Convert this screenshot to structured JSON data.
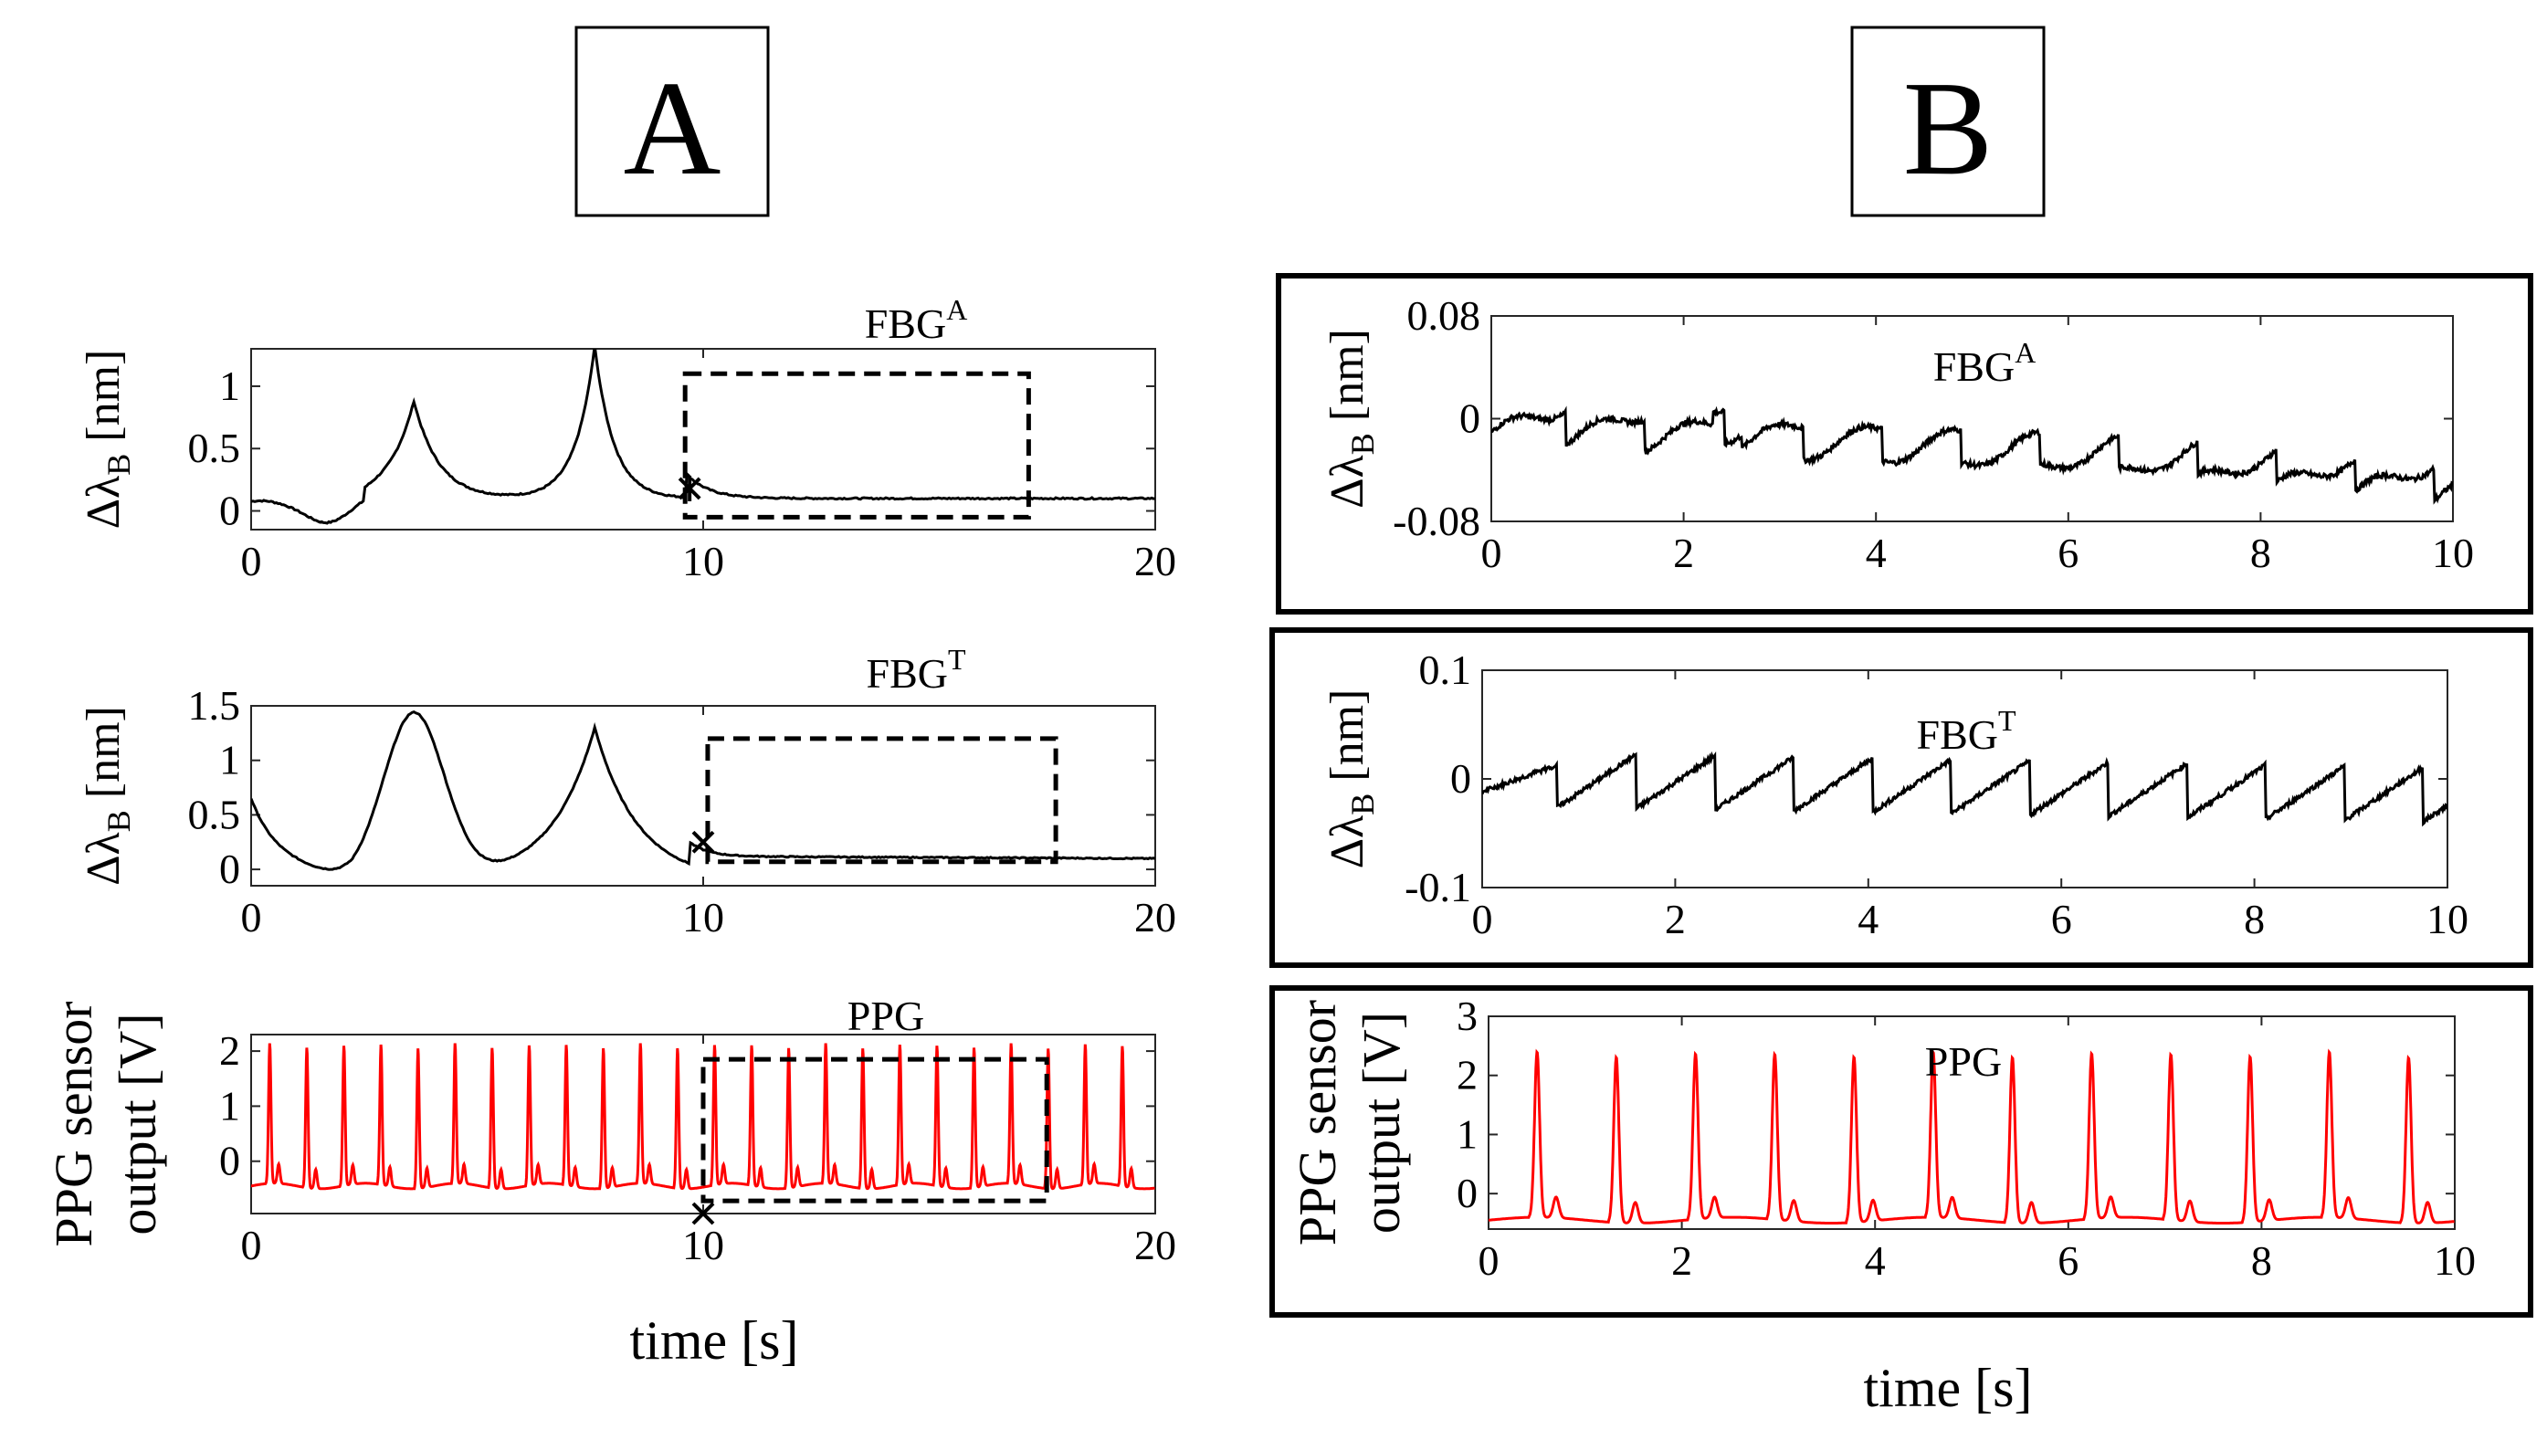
{
  "colors": {
    "black": "#000000",
    "red": "#ff0000"
  },
  "panels": {
    "A": "A",
    "B": "B"
  },
  "xlabel": "time [s]",
  "chart_data": [
    {
      "type": "line",
      "panel": "A",
      "title": "FBG",
      "title_sup": "A",
      "ylabel": "ΔλB [nm]",
      "xlabel": "",
      "xlim": [
        0,
        20
      ],
      "ylim": [
        -0.15,
        1.3
      ],
      "xticks": [
        0,
        10,
        20
      ],
      "yticks": [
        0,
        0.5,
        1
      ],
      "ytick_labels": [
        "0",
        "0.5",
        "1"
      ],
      "color": "#000000",
      "kind": "fbgA_long",
      "window_box": [
        9.6,
        17.2,
        -0.05,
        1.1
      ],
      "marker": [
        9.7,
        0.18
      ],
      "marker_symbol": "*"
    },
    {
      "type": "line",
      "panel": "A",
      "title": "FBG",
      "title_sup": "T",
      "ylabel": "ΔλB [nm]",
      "xlabel": "",
      "xlim": [
        0,
        20
      ],
      "ylim": [
        -0.15,
        1.5
      ],
      "xticks": [
        0,
        10,
        20
      ],
      "yticks": [
        0,
        0.5,
        1,
        1.5
      ],
      "ytick_labels": [
        "0",
        "0.5",
        "1",
        "1.5"
      ],
      "color": "#000000",
      "kind": "fbgT_long",
      "window_box": [
        10.1,
        17.8,
        0.07,
        1.2
      ],
      "marker": [
        10.0,
        0.25
      ],
      "marker_symbol": "x"
    },
    {
      "type": "line",
      "panel": "A",
      "title": "PPG",
      "title_sup": "",
      "ylabel": "PPG sensor|output [V]",
      "xlabel": "time [s]",
      "xlim": [
        0,
        20
      ],
      "ylim": [
        -0.95,
        2.3
      ],
      "xticks": [
        0,
        10,
        20
      ],
      "yticks": [
        0,
        1,
        2
      ],
      "ytick_labels": [
        "0",
        "1",
        "2"
      ],
      "color": "#ff0000",
      "kind": "ppg_long",
      "window_box": [
        10.0,
        17.6,
        -0.72,
        1.85
      ],
      "marker": [
        10.0,
        -0.95
      ],
      "marker_symbol": "x"
    },
    {
      "type": "line",
      "panel": "B",
      "title": "FBG",
      "title_sup": "A",
      "ylabel": "ΔλB [nm]",
      "xlabel": "",
      "xlim": [
        0,
        10
      ],
      "ylim": [
        -0.08,
        0.08
      ],
      "xticks": [
        0,
        2,
        4,
        6,
        8,
        10
      ],
      "yticks": [
        -0.08,
        0,
        0.08
      ],
      "ytick_labels": [
        "-0.08",
        "0",
        "0.08"
      ],
      "color": "#000000",
      "kind": "fbgA_short"
    },
    {
      "type": "line",
      "panel": "B",
      "title": "FBG",
      "title_sup": "T",
      "ylabel": "ΔλB [nm]",
      "xlabel": "",
      "xlim": [
        0,
        10
      ],
      "ylim": [
        -0.1,
        0.1
      ],
      "xticks": [
        0,
        2,
        4,
        6,
        8,
        10
      ],
      "yticks": [
        -0.1,
        0,
        0.1
      ],
      "ytick_labels": [
        "-0.1",
        "0",
        "0.1"
      ],
      "color": "#000000",
      "kind": "fbgT_short"
    },
    {
      "type": "line",
      "panel": "B",
      "title": "PPG",
      "title_sup": "",
      "ylabel": "PPG sensor|output  [V]",
      "xlabel": "time [s]",
      "xlim": [
        0,
        10
      ],
      "ylim": [
        -0.6,
        3
      ],
      "xticks": [
        0,
        2,
        4,
        6,
        8,
        10
      ],
      "yticks": [
        0,
        1,
        2,
        3
      ],
      "ytick_labels": [
        "0",
        "1",
        "2",
        "3"
      ],
      "color": "#ff0000",
      "kind": "ppg_short"
    }
  ]
}
